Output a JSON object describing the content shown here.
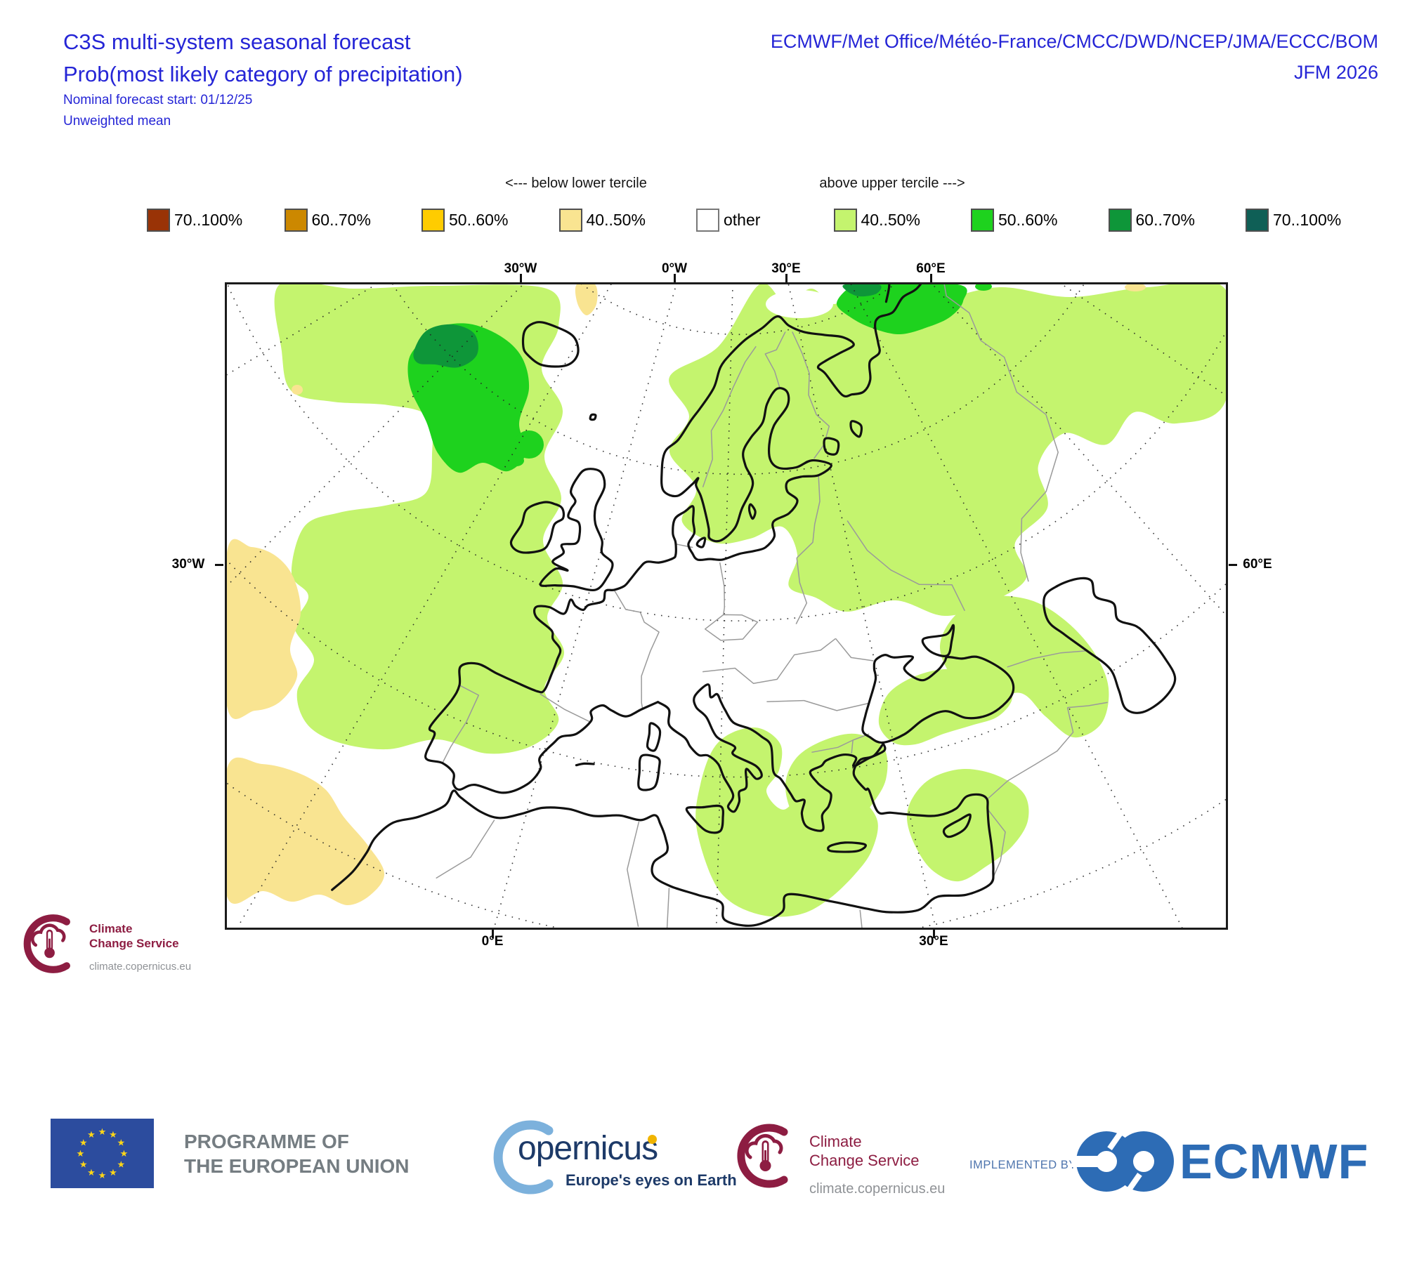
{
  "header": {
    "title": "C3S multi-system seasonal forecast",
    "subtitle": "Prob(most likely category of precipitation)",
    "forecast_start": "Nominal forecast start: 01/12/25",
    "mean_type": "Unweighted mean",
    "centers": "ECMWF/Met Office/Météo-France/CMCC/DWD/NCEP/JMA/ECCC/BOM",
    "season": "JFM 2026",
    "title_color": "#2525d6"
  },
  "legend": {
    "below_label": "<--- below lower tercile",
    "above_label": "above upper tercile --->",
    "items": [
      {
        "label": "70..100%",
        "color": "#993306",
        "side": "below"
      },
      {
        "label": "60..70%",
        "color": "#cc8800",
        "side": "below"
      },
      {
        "label": "50..60%",
        "color": "#ffcc00",
        "side": "below"
      },
      {
        "label": "40..50%",
        "color": "#f9e491",
        "side": "below"
      },
      {
        "label": "other",
        "color": "#ffffff",
        "side": "neutral"
      },
      {
        "label": "40..50%",
        "color": "#c4f46e",
        "side": "above"
      },
      {
        "label": "50..60%",
        "color": "#1ed21e",
        "side": "above"
      },
      {
        "label": "60..70%",
        "color": "#0e9639",
        "side": "above"
      },
      {
        "label": "70..100%",
        "color": "#0f5f56",
        "side": "above"
      }
    ]
  },
  "map": {
    "axis": {
      "top": [
        "30°W",
        "0°W",
        "30°E",
        "60°E"
      ],
      "bottom": [
        "0°E",
        "30°E"
      ],
      "left": "30°W",
      "right": "60°E"
    },
    "colors": {
      "coast": "#111111",
      "border": "#9a9a9a",
      "graticule": "#222222",
      "above_40_50": "#c4f46e",
      "above_50_60": "#1ed21e",
      "above_60_70": "#0e9639",
      "below_40_50": "#f9e491"
    },
    "regions": [
      {
        "area": "Northeast Atlantic west of British Isles",
        "category": "above upper tercile 40..50%",
        "core": "50..60% core with 60..70% patch"
      },
      {
        "area": "Scandinavia, Baltic and northwest Russia",
        "category": "above upper tercile 40..50%"
      },
      {
        "area": "Barents Sea / Novaya Zemlya",
        "category": "above upper tercile 50..60% with 60..70% patch"
      },
      {
        "area": "Caucasus and west Caspian",
        "category": "above upper tercile 40..50%"
      },
      {
        "area": "Southern Black Sea coast",
        "category": "above upper tercile 40..50%"
      },
      {
        "area": "Aegean Sea and Greece",
        "category": "above upper tercile 40..50%"
      },
      {
        "area": "Central Mediterranean / Libya",
        "category": "above upper tercile 40..50%"
      },
      {
        "area": "Cyprus and Levant",
        "category": "above upper tercile 40..50%"
      },
      {
        "area": "Subtropical Atlantic near Azores",
        "category": "below lower tercile 40..50%"
      },
      {
        "area": "Morocco / northwest Africa coast",
        "category": "below lower tercile 40..50%"
      }
    ]
  },
  "map_logo": {
    "name_line1": "Climate",
    "name_line2": "Change Service",
    "url": "climate.copernicus.eu"
  },
  "footer": {
    "eu_line1": "PROGRAMME OF",
    "eu_line2": "THE EUROPEAN UNION",
    "copernicus_word": "opernicus",
    "copernicus_tagline": "Europe's eyes on Earth",
    "c3s_line1": "Climate",
    "c3s_line2": "Change Service",
    "c3s_url": "climate.copernicus.eu",
    "implemented_by": "IMPLEMENTED BY",
    "ecmwf": "ECMWF"
  }
}
